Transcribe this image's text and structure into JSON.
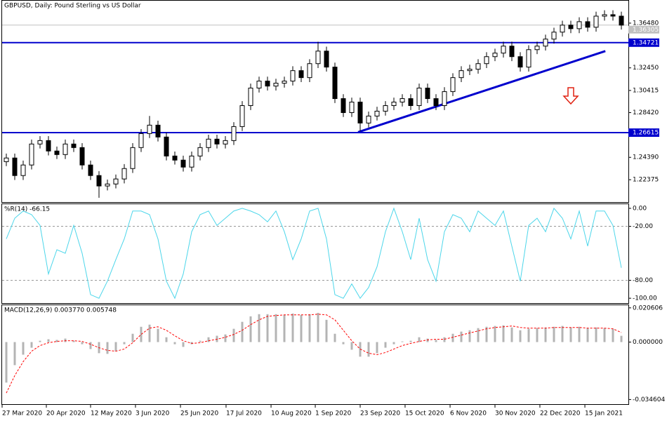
{
  "chart_data": [
    {
      "type": "candlestick",
      "title": "GBPUSD, Daily:  Pound Sterling vs US Dollar",
      "color": "#000000",
      "open": [
        1.24,
        1.2433,
        1.2275,
        1.237,
        1.2559,
        1.259,
        1.2496,
        1.2464,
        1.2559,
        1.2527,
        1.237,
        1.2275,
        1.2181,
        1.2199,
        1.2244,
        1.2338,
        1.2527,
        1.2653,
        1.2729,
        1.2622,
        1.2451,
        1.2414,
        1.2351,
        1.2451,
        1.2527,
        1.2603,
        1.2559,
        1.259,
        1.2716,
        1.2905,
        1.3063,
        1.3126,
        1.3081,
        1.3107,
        1.3126,
        1.322,
        1.3157,
        1.3283,
        1.3396,
        1.3252,
        1.2968,
        1.2842,
        1.2937,
        1.2748,
        1.2811,
        1.2855,
        1.2905,
        1.2937,
        1.2968,
        1.2905,
        1.3063,
        1.2968,
        1.2905,
        1.3031,
        1.3157,
        1.322,
        1.3233,
        1.3283,
        1.3346,
        1.3378,
        1.3441,
        1.3346,
        1.3252,
        1.3409,
        1.3441,
        1.3504,
        1.3567,
        1.363,
        1.3598,
        1.3661,
        1.3611,
        1.3711,
        1.3724,
        1.3711
      ],
      "high": [
        1.2473,
        1.2473,
        1.241,
        1.2599,
        1.263,
        1.263,
        1.2536,
        1.2599,
        1.2599,
        1.2567,
        1.241,
        1.2315,
        1.2239,
        1.2284,
        1.2378,
        1.2567,
        1.2693,
        1.2812,
        1.2769,
        1.2662,
        1.2491,
        1.2454,
        1.2491,
        1.2567,
        1.2643,
        1.2643,
        1.263,
        1.2756,
        1.2945,
        1.3103,
        1.3166,
        1.3166,
        1.3147,
        1.3166,
        1.326,
        1.326,
        1.3323,
        1.348,
        1.3436,
        1.3292,
        1.3008,
        1.2977,
        1.2977,
        1.2851,
        1.2895,
        1.2945,
        1.2977,
        1.3008,
        1.3008,
        1.3103,
        1.3103,
        1.3008,
        1.3071,
        1.3197,
        1.326,
        1.3273,
        1.3323,
        1.3386,
        1.3418,
        1.3481,
        1.3481,
        1.3386,
        1.3449,
        1.3481,
        1.3544,
        1.3607,
        1.367,
        1.367,
        1.3701,
        1.3701,
        1.3751,
        1.3764,
        1.3764,
        1.3751
      ],
      "low": [
        1.236,
        1.2235,
        1.2235,
        1.233,
        1.2519,
        1.2456,
        1.2424,
        1.2424,
        1.2487,
        1.233,
        1.2235,
        1.2075,
        1.2141,
        1.2159,
        1.2204,
        1.2298,
        1.2487,
        1.2613,
        1.2582,
        1.2411,
        1.2374,
        1.2311,
        1.2311,
        1.2411,
        1.2487,
        1.2519,
        1.2519,
        1.255,
        1.2676,
        1.2865,
        1.3023,
        1.3041,
        1.3041,
        1.3067,
        1.3086,
        1.3117,
        1.3117,
        1.3243,
        1.3212,
        1.2928,
        1.2802,
        1.2802,
        1.2675,
        1.2708,
        1.2771,
        1.2815,
        1.2865,
        1.2897,
        1.2865,
        1.2865,
        1.2928,
        1.2865,
        1.2865,
        1.2991,
        1.3117,
        1.318,
        1.3193,
        1.3243,
        1.3306,
        1.3338,
        1.3306,
        1.3212,
        1.3212,
        1.3369,
        1.3401,
        1.3464,
        1.3527,
        1.3558,
        1.3558,
        1.3571,
        1.3571,
        1.3671,
        1.3671,
        1.359
      ],
      "close": [
        1.2433,
        1.2275,
        1.237,
        1.2559,
        1.259,
        1.2496,
        1.2464,
        1.2559,
        1.2527,
        1.237,
        1.2275,
        1.2181,
        1.2199,
        1.2244,
        1.2338,
        1.2527,
        1.2653,
        1.2729,
        1.2622,
        1.2451,
        1.2414,
        1.2351,
        1.2451,
        1.2527,
        1.2603,
        1.2559,
        1.259,
        1.2716,
        1.2905,
        1.3063,
        1.3126,
        1.3081,
        1.3107,
        1.3126,
        1.322,
        1.3157,
        1.3283,
        1.3396,
        1.3252,
        1.2968,
        1.2842,
        1.2937,
        1.2748,
        1.2811,
        1.2855,
        1.2905,
        1.2937,
        1.2968,
        1.2905,
        1.3063,
        1.2968,
        1.2905,
        1.3031,
        1.3157,
        1.322,
        1.3233,
        1.3283,
        1.3346,
        1.3378,
        1.3441,
        1.3346,
        1.3252,
        1.3409,
        1.3441,
        1.3504,
        1.3567,
        1.363,
        1.3598,
        1.3661,
        1.3611,
        1.3711,
        1.3724,
        1.3711,
        1.363
      ],
      "ylim": [
        1.2036,
        1.385
      ],
      "yticks": [
        {
          "value": 1.3648,
          "label": "1.36480"
        },
        {
          "value": 1.3245,
          "label": "1.32450"
        },
        1.30415,
        {
          "value": 1.2842,
          "label": "1.28420"
        },
        {
          "value": 1.2439,
          "label": "1.24390"
        },
        1.22375
      ],
      "levels": [
        1.34721,
        1.26615
      ],
      "level_color": "#0000cd",
      "trendline": {
        "x": [
          42.25,
          71.6
        ],
        "y": [
          1.2666,
          1.3396
        ]
      },
      "last_price": 1.36305
    },
    {
      "type": "line",
      "title": "%R(14) -66.15",
      "color": "#4cd6ea",
      "values": [
        -34,
        -11,
        -3,
        -7,
        -19,
        -73,
        -46,
        -50,
        -19,
        -50,
        -96,
        -100,
        -81,
        -57,
        -34,
        -3,
        -3,
        -7,
        -34,
        -81,
        -100,
        -73,
        -26,
        -7,
        -3,
        -19,
        -11,
        -3,
        0,
        -3,
        -7,
        -15,
        -3,
        -26,
        -57,
        -34,
        -3,
        0,
        -34,
        -96,
        -100,
        -84,
        -100,
        -88,
        -65,
        -26,
        0,
        -26,
        -57,
        -11,
        -57,
        -81,
        -26,
        -7,
        -11,
        -26,
        -3,
        -11,
        -19,
        -3,
        -42,
        -81,
        -19,
        -11,
        -26,
        0,
        -11,
        -34,
        -3,
        -42,
        -3,
        -3,
        -19,
        -66.15
      ],
      "ylim": [
        -105.4,
        4.6
      ],
      "yticks": [
        {
          "value": 0,
          "label": "0.00"
        },
        {
          "value": -20,
          "label": "-20.00"
        },
        {
          "value": -80,
          "label": "-80.00"
        },
        {
          "value": -100,
          "label": "-100.00"
        }
      ]
    },
    {
      "type": "macd",
      "title": "MACD(12,26,9) 0.003770 0.005748",
      "color": "#b4b4b4",
      "signal_color": "#ff0000",
      "values": [
        -0.0244,
        -0.0139,
        -0.0076,
        -0.0034,
        0.0008,
        0.0017,
        0.0013,
        0.0021,
        0.0008,
        -0.0013,
        -0.0042,
        -0.0067,
        -0.0071,
        -0.0055,
        -0.0013,
        0.005,
        0.0092,
        0.0105,
        0.008,
        0.0029,
        -0.0013,
        -0.0029,
        -0.0013,
        0.0008,
        0.0029,
        0.0038,
        0.0046,
        0.008,
        0.0122,
        0.0155,
        0.0168,
        0.0168,
        0.0168,
        0.0164,
        0.0172,
        0.0164,
        0.0168,
        0.0176,
        0.0134,
        0.005,
        -0.0013,
        -0.0046,
        -0.0088,
        -0.0088,
        -0.0067,
        -0.0034,
        -0.0013,
        0.0004,
        0.0008,
        0.0029,
        0.0021,
        0.0013,
        0.0029,
        0.005,
        0.0063,
        0.0071,
        0.0084,
        0.0092,
        0.0097,
        0.0101,
        0.0088,
        0.0071,
        0.008,
        0.0084,
        0.0088,
        0.0092,
        0.0097,
        0.0088,
        0.0092,
        0.0084,
        0.0088,
        0.0084,
        0.008,
        0.00377
      ],
      "signal": [
        -0.0307,
        -0.0202,
        -0.0118,
        -0.0055,
        -0.0021,
        -0.0004,
        0.0004,
        0.0008,
        0.0008,
        0.0004,
        -0.0013,
        -0.0034,
        -0.005,
        -0.0055,
        -0.0042,
        -0.0004,
        0.0046,
        0.0084,
        0.0092,
        0.0071,
        0.0038,
        0.0008,
        -0.0008,
        -0.0004,
        0.0008,
        0.0017,
        0.0029,
        0.0046,
        0.0071,
        0.0105,
        0.0134,
        0.0155,
        0.016,
        0.0164,
        0.0164,
        0.0164,
        0.0164,
        0.0168,
        0.0164,
        0.0134,
        0.0071,
        0.0008,
        -0.0042,
        -0.0067,
        -0.0076,
        -0.0063,
        -0.0042,
        -0.0021,
        -0.0008,
        0.0004,
        0.0013,
        0.0017,
        0.0017,
        0.0029,
        0.0042,
        0.0055,
        0.0067,
        0.008,
        0.0088,
        0.0092,
        0.0097,
        0.0088,
        0.0084,
        0.0084,
        0.0084,
        0.0088,
        0.0088,
        0.0088,
        0.0088,
        0.0084,
        0.0084,
        0.0084,
        0.008,
        0.005748
      ],
      "ylim": [
        -0.0374,
        0.0222
      ],
      "yticks": [
        0.020606,
        {
          "value": 0,
          "label": "0.000000"
        },
        -0.034604
      ],
      "xlim": [
        0,
        74
      ],
      "xticks": [
        {
          "value": 0,
          "label": "27 Mar 2020"
        },
        {
          "value": 5.25,
          "label": "20 Apr 2020"
        },
        {
          "value": 10.5,
          "label": "12 May 2020"
        },
        {
          "value": 15.83,
          "label": "3 Jun 2020"
        },
        {
          "value": 21.17,
          "label": "25 Jun 2020"
        },
        {
          "value": 26.58,
          "label": "17 Jul 2020"
        },
        {
          "value": 31.92,
          "label": "10 Aug 2020"
        },
        {
          "value": 37.17,
          "label": "1 Sep 2020"
        },
        {
          "value": 42.5,
          "label": "23 Sep 2020"
        },
        {
          "value": 47.83,
          "label": "15 Oct 2020"
        },
        {
          "value": 53.17,
          "label": "6 Nov 2020"
        },
        {
          "value": 58.5,
          "label": "30 Nov 2020"
        },
        {
          "value": 63.83,
          "label": "22 Dec 2020"
        },
        {
          "value": 69.17,
          "label": "15 Jan 2021"
        }
      ]
    }
  ]
}
